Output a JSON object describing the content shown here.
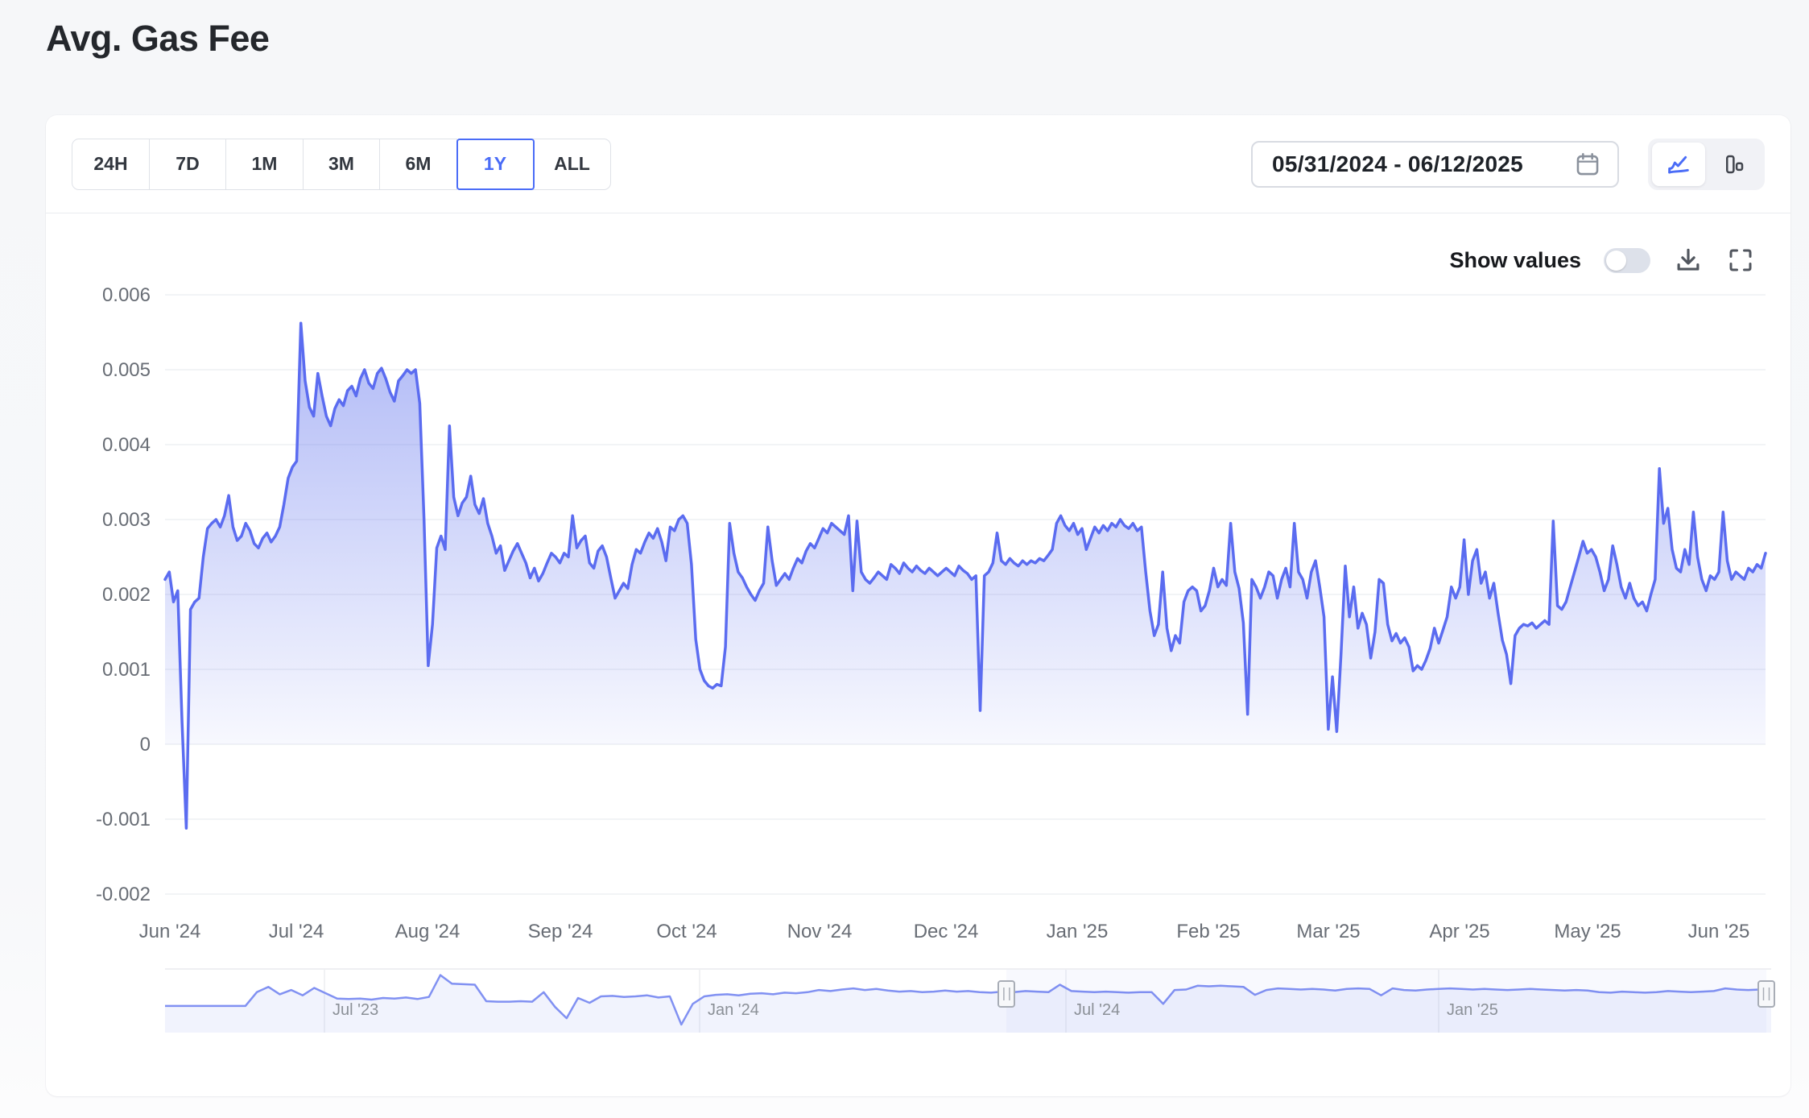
{
  "page": {
    "title": "Avg. Gas Fee"
  },
  "toolbar": {
    "ranges": [
      {
        "label": "24H"
      },
      {
        "label": "7D"
      },
      {
        "label": "1M"
      },
      {
        "label": "3M"
      },
      {
        "label": "6M"
      },
      {
        "label": "1Y"
      },
      {
        "label": "ALL"
      }
    ],
    "selected_range": "1Y",
    "date_range": {
      "value": "05/31/2024 - 06/12/2025",
      "icon": "calendar-icon"
    },
    "chart_type": {
      "options": [
        {
          "icon": "line-chart-icon",
          "active": true
        },
        {
          "icon": "column-chart-icon",
          "active": false
        }
      ]
    }
  },
  "controls": {
    "show_values_label": "Show values",
    "show_values_on": false,
    "icons": [
      "download-icon",
      "fullscreen-icon"
    ]
  },
  "colors": {
    "accent": "#4a6cf7",
    "main_line": "#5b6cf0",
    "main_fill": "#6577ee",
    "nav_line": "#8191f2",
    "grid": "#eef0f3",
    "axis_text": "#686d75"
  },
  "chart_data": [
    {
      "type": "area",
      "title": "Avg. Gas Fee",
      "xlabel": "",
      "ylabel": "Avg. Gas Fee",
      "x_range": [
        "05/31/2024",
        "06/12/2025"
      ],
      "ylim": [
        -0.002,
        0.006
      ],
      "grid": "horizontal",
      "legend": "none",
      "line_color": "#5b6cf0",
      "fill_color": "#6577ee",
      "y_ticks": [
        0.006,
        0.005,
        0.004,
        0.003,
        0.002,
        0.001,
        0,
        -0.001,
        -0.002
      ],
      "x_ticks": [
        {
          "label": "Jun '24",
          "pos": 0.003
        },
        {
          "label": "Jul '24",
          "pos": 0.082
        },
        {
          "label": "Aug '24",
          "pos": 0.164
        },
        {
          "label": "Sep '24",
          "pos": 0.247
        },
        {
          "label": "Oct '24",
          "pos": 0.326
        },
        {
          "label": "Nov '24",
          "pos": 0.409
        },
        {
          "label": "Dec '24",
          "pos": 0.488
        },
        {
          "label": "Jan '25",
          "pos": 0.57
        },
        {
          "label": "Feb '25",
          "pos": 0.652
        },
        {
          "label": "Mar '25",
          "pos": 0.727
        },
        {
          "label": "Apr '25",
          "pos": 0.809
        },
        {
          "label": "May '25",
          "pos": 0.889
        },
        {
          "label": "Jun '25",
          "pos": 0.971
        }
      ],
      "values": [
        0.0022,
        0.0023,
        0.0019,
        0.00205,
        0.0003,
        -0.00112,
        0.0018,
        0.0019,
        0.00195,
        0.0025,
        0.00288,
        0.00295,
        0.003,
        0.0029,
        0.00305,
        0.00332,
        0.0029,
        0.00272,
        0.00278,
        0.00295,
        0.00285,
        0.00268,
        0.00262,
        0.00275,
        0.00282,
        0.0027,
        0.00278,
        0.0029,
        0.0032,
        0.00355,
        0.0037,
        0.00378,
        0.00562,
        0.00485,
        0.0045,
        0.00438,
        0.00495,
        0.00465,
        0.00438,
        0.00425,
        0.00448,
        0.0046,
        0.00452,
        0.00472,
        0.00478,
        0.00465,
        0.00488,
        0.005,
        0.00482,
        0.00475,
        0.00495,
        0.00502,
        0.00488,
        0.0047,
        0.00458,
        0.00485,
        0.00492,
        0.005,
        0.00495,
        0.005,
        0.00455,
        0.003,
        0.00105,
        0.0016,
        0.00262,
        0.00278,
        0.0026,
        0.00425,
        0.0033,
        0.00305,
        0.00322,
        0.0033,
        0.00358,
        0.0032,
        0.00308,
        0.00328,
        0.00295,
        0.00278,
        0.00255,
        0.00265,
        0.00232,
        0.00245,
        0.00258,
        0.00268,
        0.00255,
        0.00242,
        0.00222,
        0.00235,
        0.00218,
        0.00228,
        0.00242,
        0.00255,
        0.0025,
        0.00242,
        0.00255,
        0.0025,
        0.00305,
        0.00262,
        0.00272,
        0.00278,
        0.00242,
        0.00235,
        0.00258,
        0.00265,
        0.0025,
        0.00222,
        0.00195,
        0.00205,
        0.00215,
        0.00208,
        0.0024,
        0.0026,
        0.00255,
        0.0027,
        0.00282,
        0.00275,
        0.00288,
        0.0027,
        0.00245,
        0.0029,
        0.00285,
        0.003,
        0.00305,
        0.00295,
        0.0024,
        0.0014,
        0.001,
        0.00085,
        0.00078,
        0.00075,
        0.0008,
        0.00078,
        0.0013,
        0.00295,
        0.00255,
        0.0023,
        0.00222,
        0.0021,
        0.002,
        0.00192,
        0.00205,
        0.00215,
        0.0029,
        0.00245,
        0.00212,
        0.0022,
        0.00228,
        0.0022,
        0.00235,
        0.00248,
        0.00242,
        0.00258,
        0.00268,
        0.00262,
        0.00275,
        0.00288,
        0.00282,
        0.00295,
        0.0029,
        0.00285,
        0.0028,
        0.00305,
        0.00205,
        0.00298,
        0.0023,
        0.0022,
        0.00215,
        0.00222,
        0.0023,
        0.00225,
        0.0022,
        0.0024,
        0.00235,
        0.00228,
        0.00242,
        0.00235,
        0.0023,
        0.00238,
        0.00232,
        0.00228,
        0.00235,
        0.0023,
        0.00225,
        0.0023,
        0.00235,
        0.0023,
        0.00225,
        0.00238,
        0.00232,
        0.00228,
        0.0022,
        0.00225,
        0.00045,
        0.00225,
        0.0023,
        0.00242,
        0.00282,
        0.00245,
        0.0024,
        0.00248,
        0.00242,
        0.00238,
        0.00245,
        0.0024,
        0.00245,
        0.00242,
        0.00248,
        0.00245,
        0.00252,
        0.0026,
        0.00295,
        0.00305,
        0.00292,
        0.00285,
        0.00295,
        0.0028,
        0.00288,
        0.0026,
        0.00275,
        0.0029,
        0.00282,
        0.00292,
        0.00285,
        0.00295,
        0.0029,
        0.003,
        0.00292,
        0.00288,
        0.00295,
        0.00285,
        0.0029,
        0.0023,
        0.00178,
        0.00145,
        0.0016,
        0.0023,
        0.00155,
        0.00125,
        0.00145,
        0.00135,
        0.0019,
        0.00205,
        0.0021,
        0.00205,
        0.00178,
        0.00185,
        0.00205,
        0.00235,
        0.0021,
        0.0022,
        0.00212,
        0.00295,
        0.0023,
        0.00208,
        0.00162,
        0.0004,
        0.0022,
        0.0021,
        0.00195,
        0.0021,
        0.0023,
        0.00225,
        0.00195,
        0.0022,
        0.00235,
        0.0021,
        0.00295,
        0.0023,
        0.0022,
        0.00195,
        0.0023,
        0.00245,
        0.0021,
        0.0017,
        0.0002,
        0.0009,
        0.00017,
        0.0012,
        0.00238,
        0.0017,
        0.0021,
        0.00155,
        0.00175,
        0.0016,
        0.00115,
        0.0015,
        0.0022,
        0.00215,
        0.0016,
        0.00138,
        0.00148,
        0.00135,
        0.00142,
        0.0013,
        0.00098,
        0.00105,
        0.001,
        0.00112,
        0.00128,
        0.00155,
        0.00135,
        0.00152,
        0.0017,
        0.0021,
        0.00195,
        0.0021,
        0.00273,
        0.002,
        0.00245,
        0.0026,
        0.00215,
        0.0023,
        0.00195,
        0.00215,
        0.00175,
        0.00139,
        0.0012,
        0.00081,
        0.00145,
        0.00155,
        0.0016,
        0.00158,
        0.00162,
        0.00155,
        0.0016,
        0.00165,
        0.0016,
        0.00298,
        0.00185,
        0.0018,
        0.0019,
        0.0021,
        0.0023,
        0.0025,
        0.00271,
        0.00255,
        0.0026,
        0.0025,
        0.0023,
        0.00205,
        0.0022,
        0.00265,
        0.0024,
        0.0021,
        0.00195,
        0.00215,
        0.00195,
        0.00185,
        0.0019,
        0.00178,
        0.002,
        0.0022,
        0.00368,
        0.00295,
        0.00315,
        0.0026,
        0.00235,
        0.0023,
        0.0026,
        0.0024,
        0.0031,
        0.0025,
        0.0022,
        0.00205,
        0.00225,
        0.0022,
        0.0023,
        0.0031,
        0.00245,
        0.0022,
        0.0023,
        0.00225,
        0.0022,
        0.00235,
        0.0023,
        0.0024,
        0.00235,
        0.00255
      ]
    },
    {
      "type": "area",
      "role": "navigator",
      "x_range": [
        "04/2023",
        "06/12/2025"
      ],
      "ylim": [
        -0.0013,
        0.0037
      ],
      "line_color": "#8191f2",
      "fill_color": "#6577ee",
      "handles": [
        0.524,
        0.997
      ],
      "x_ticks": [
        {
          "label": "Jul '23",
          "pos": 0.099
        },
        {
          "label": "Jan '24",
          "pos": 0.333
        },
        {
          "label": "Jul '24",
          "pos": 0.561
        },
        {
          "label": "Jan '25",
          "pos": 0.793
        }
      ],
      "values": [
        0.0006,
        0.0006,
        0.0006,
        0.0006,
        0.0006,
        0.0006,
        0.0006,
        0.0006,
        0.0019,
        0.0024,
        0.0017,
        0.0021,
        0.0016,
        0.0023,
        0.0018,
        0.0013,
        0.00125,
        0.0013,
        0.0012,
        0.00135,
        0.0013,
        0.0014,
        0.00125,
        0.00145,
        0.0035,
        0.0027,
        0.00265,
        0.0026,
        0.00105,
        0.001,
        0.001,
        0.00105,
        0.001,
        0.0019,
        0.0005,
        -0.00055,
        0.00135,
        0.0009,
        0.0015,
        0.00155,
        0.00145,
        0.0015,
        0.0016,
        0.0014,
        0.0015,
        -0.00115,
        0.0008,
        0.0015,
        0.00165,
        0.0017,
        0.0016,
        0.00175,
        0.0018,
        0.0017,
        0.00185,
        0.0018,
        0.0019,
        0.0021,
        0.002,
        0.00215,
        0.00225,
        0.0021,
        0.0022,
        0.00205,
        0.00195,
        0.002,
        0.0019,
        0.00195,
        0.00205,
        0.00195,
        0.002,
        0.0019,
        0.00185,
        0.00195,
        0.0019,
        0.002,
        0.00195,
        0.0019,
        0.0026,
        0.002,
        0.00195,
        0.0019,
        0.00195,
        0.0019,
        0.00185,
        0.0019,
        0.0019,
        0.0008,
        0.0021,
        0.00215,
        0.0025,
        0.00245,
        0.0025,
        0.00245,
        0.0024,
        0.00165,
        0.0021,
        0.00225,
        0.0022,
        0.00215,
        0.0022,
        0.00215,
        0.00205,
        0.0022,
        0.00225,
        0.0022,
        0.0016,
        0.00225,
        0.0021,
        0.00205,
        0.00215,
        0.0022,
        0.00225,
        0.0022,
        0.00215,
        0.0022,
        0.00215,
        0.0021,
        0.00215,
        0.0022,
        0.00215,
        0.0021,
        0.00205,
        0.0021,
        0.00205,
        0.0019,
        0.00185,
        0.00195,
        0.0019,
        0.00185,
        0.0019,
        0.002,
        0.00195,
        0.0019,
        0.00195,
        0.002,
        0.00225,
        0.00215,
        0.0021,
        0.00215,
        0.0022
      ]
    }
  ]
}
